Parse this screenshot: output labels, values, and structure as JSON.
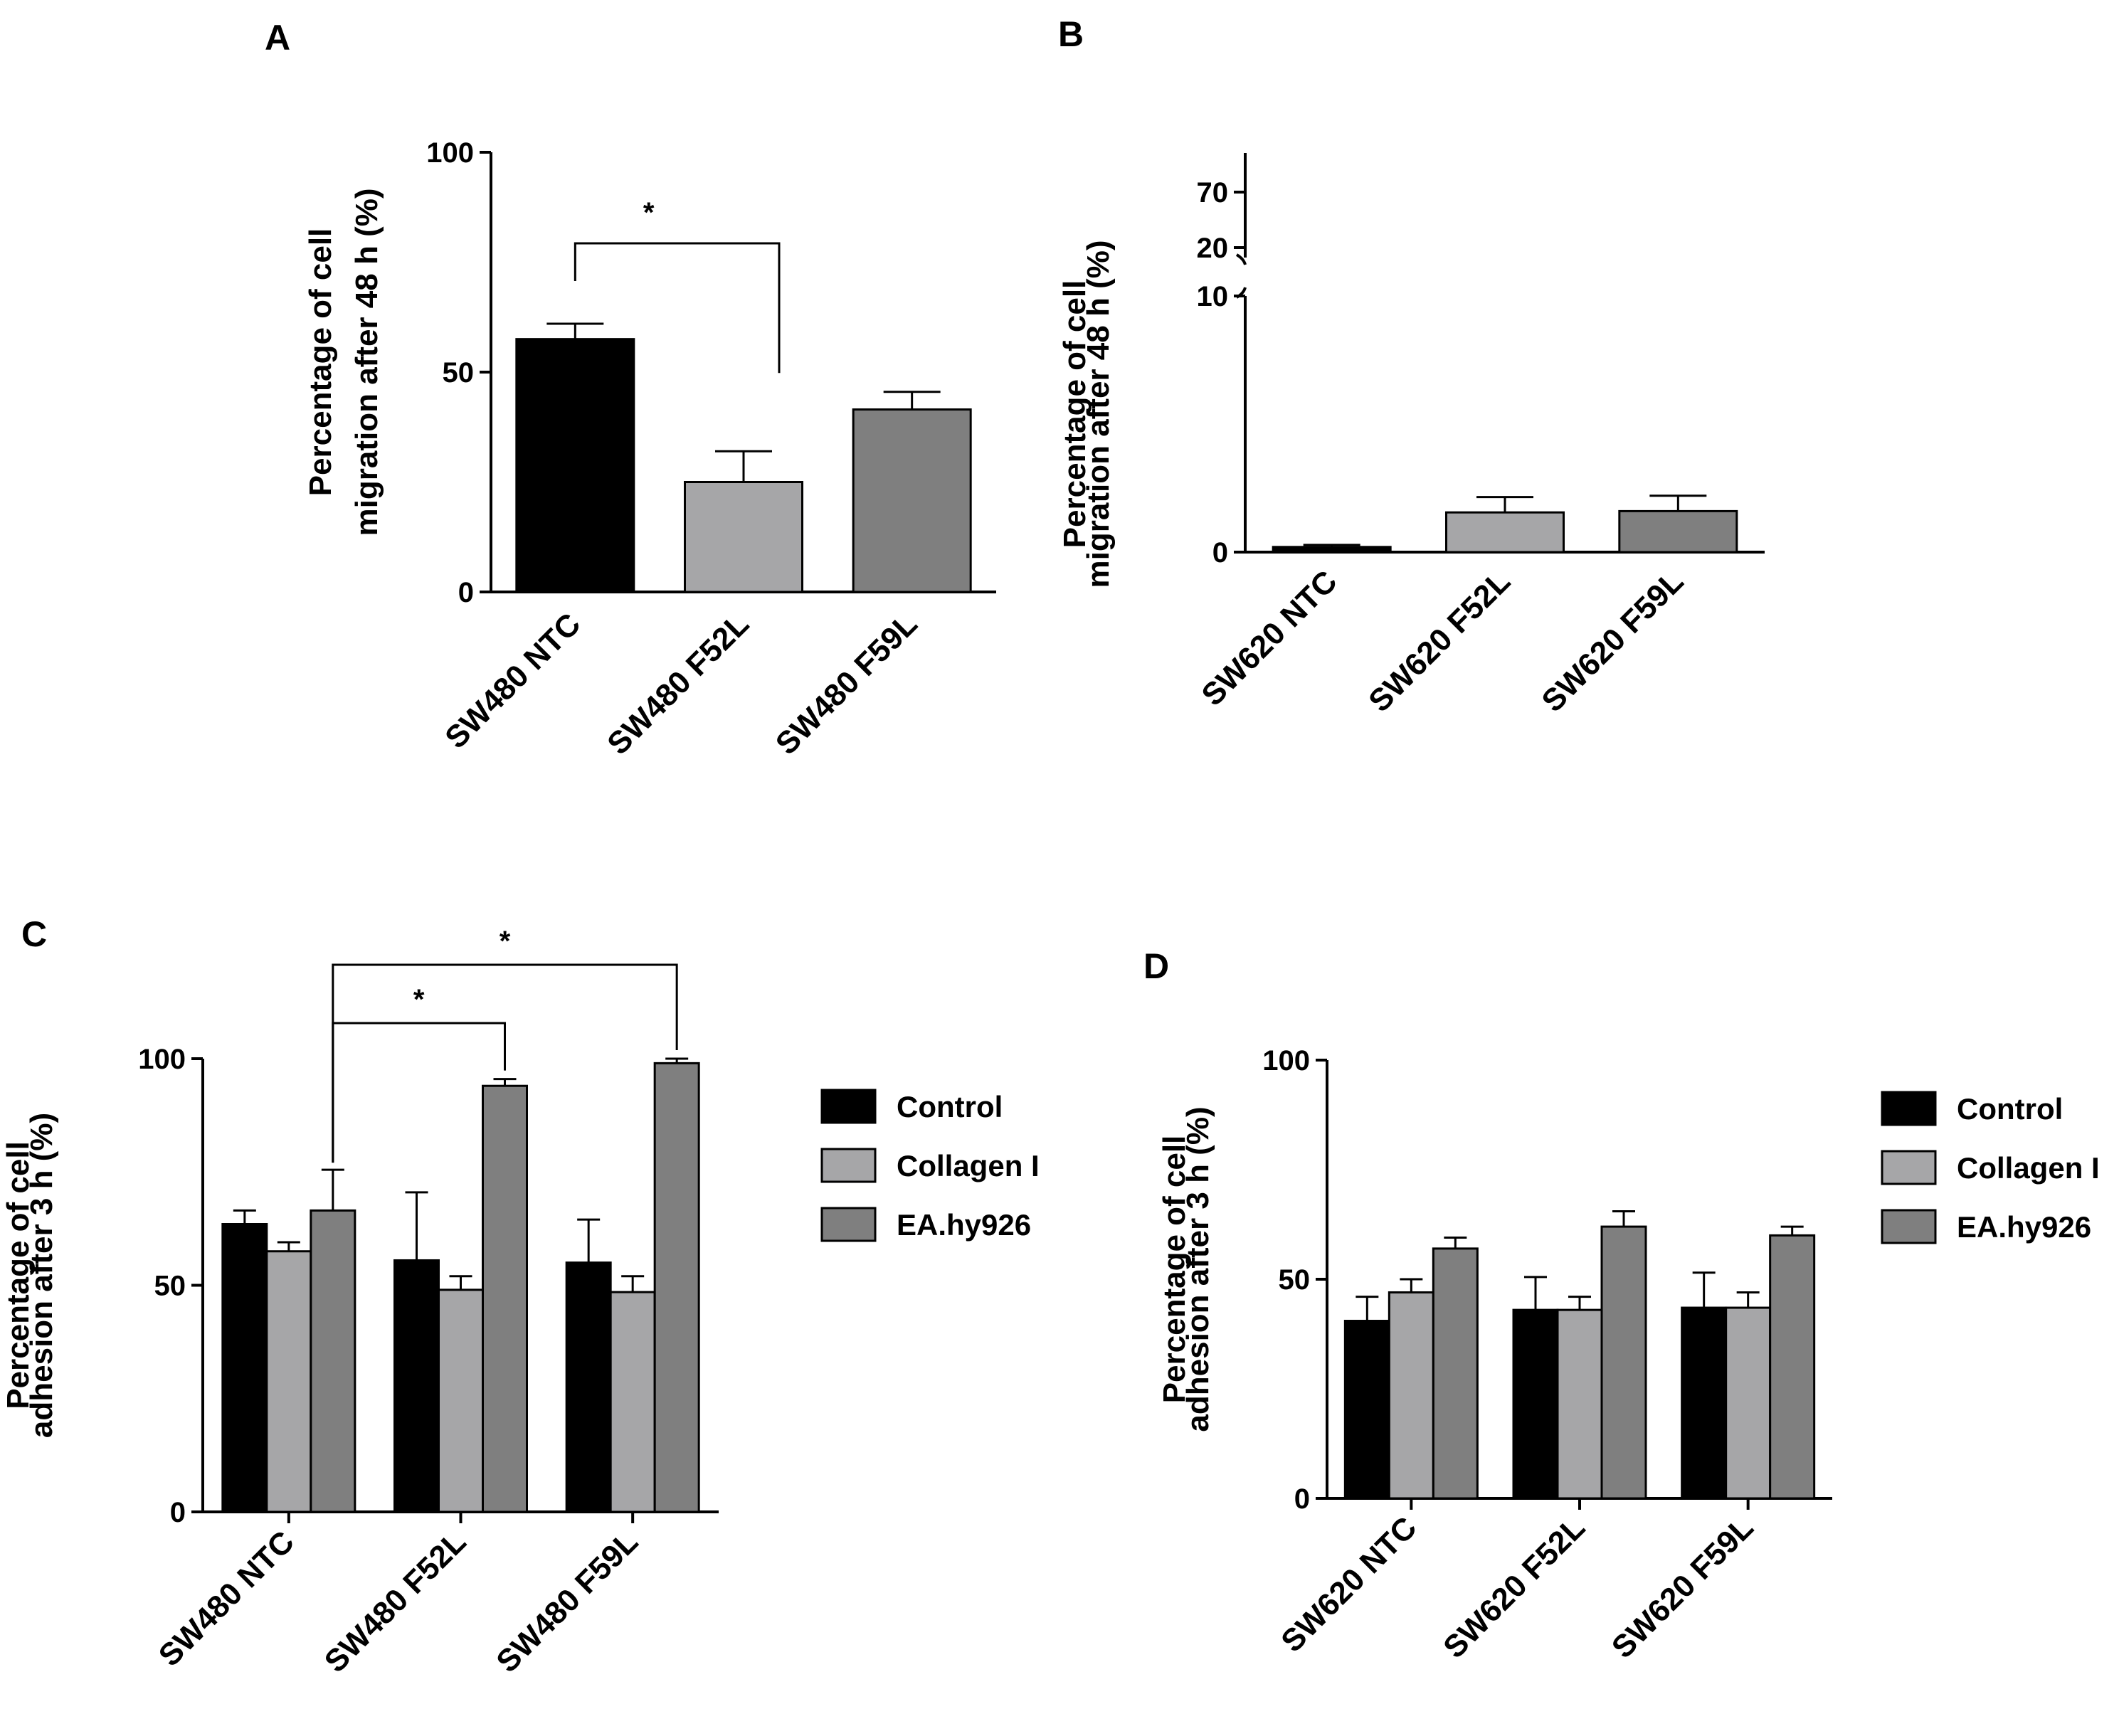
{
  "chart_data": [
    {
      "panel": "A",
      "type": "bar",
      "ylabel": "Percentage of cell migration after 48 h (%)",
      "ylabel_lines": [
        "Percentage of cell",
        "migration after 48 h (%)"
      ],
      "ylim": [
        0,
        100
      ],
      "yticks": [
        "0",
        "50",
        "100"
      ],
      "categories": [
        "SW480 NTC",
        "SW480 F52L",
        "SW480 F59L"
      ],
      "values": [
        57.5,
        25,
        41.5
      ],
      "errors": [
        3.5,
        7,
        4
      ],
      "colors": [
        "#000000",
        "#a6a6a8",
        "#7f7f7f"
      ],
      "significance": [
        {
          "from": 0,
          "to": 1,
          "label": "*"
        }
      ]
    },
    {
      "panel": "B",
      "type": "bar",
      "ylabel": "Percentage of cell migration after 48 h (%)",
      "ylabel_lines": [
        "Percentage of cell",
        "migration after 48 h (%)"
      ],
      "ylim": [
        0,
        10
      ],
      "yticks": [
        "0",
        "10"
      ],
      "broken_axis_ticks": [
        "20",
        "70"
      ],
      "categories": [
        "SW620 NTC",
        "SW620 F52L",
        "SW620 F59L"
      ],
      "values": [
        0.2,
        1.55,
        1.6
      ],
      "errors": [
        0.08,
        0.6,
        0.6
      ],
      "colors": [
        "#000000",
        "#a6a6a8",
        "#7f7f7f"
      ]
    },
    {
      "panel": "C",
      "type": "bar",
      "ylabel": "Percentage of cell adhesion after 3 h (%)",
      "ylabel_lines": [
        "Percentage of cell",
        "adhesion after 3 h (%)"
      ],
      "ylim": [
        0,
        100
      ],
      "yticks": [
        "0",
        "50",
        "100"
      ],
      "categories": [
        "SW480 NTC",
        "SW480 F52L",
        "SW480 F59L"
      ],
      "series": [
        {
          "name": "Control",
          "color": "#000000",
          "values": [
            63.5,
            55.5,
            55
          ],
          "errors": [
            3,
            15,
            9.5
          ]
        },
        {
          "name": "Collagen I",
          "color": "#a6a6a8",
          "values": [
            57.5,
            49,
            48.5
          ],
          "errors": [
            2,
            3,
            3.5
          ]
        },
        {
          "name": "EA.hy926",
          "color": "#7f7f7f",
          "values": [
            66.5,
            94,
            99
          ],
          "errors": [
            9,
            1.5,
            1
          ]
        }
      ],
      "legend": [
        "Control",
        "Collagen I",
        "EA.hy926"
      ],
      "significance": [
        {
          "from_group": 0,
          "to_group": 1,
          "series": 2,
          "label": "*"
        },
        {
          "from_group": 0,
          "to_group": 2,
          "series": 2,
          "label": "*"
        }
      ]
    },
    {
      "panel": "D",
      "type": "bar",
      "ylabel": "Percentage of cell adhesion after 3 h (%)",
      "ylabel_lines": [
        "Percentage of cell",
        "adhesion after 3 h (%)"
      ],
      "ylim": [
        0,
        100
      ],
      "yticks": [
        "0",
        "50",
        "100"
      ],
      "categories": [
        "SW620 NTC",
        "SW620 F52L",
        "SW620 F59L"
      ],
      "series": [
        {
          "name": "Control",
          "color": "#000000",
          "values": [
            40.5,
            43,
            43.5
          ],
          "errors": [
            5.5,
            7.5,
            8
          ]
        },
        {
          "name": "Collagen I",
          "color": "#a6a6a8",
          "values": [
            47,
            43,
            43.5
          ],
          "errors": [
            3,
            3,
            3.5
          ]
        },
        {
          "name": "EA.hy926",
          "color": "#7f7f7f",
          "values": [
            57,
            62,
            60
          ],
          "errors": [
            2.5,
            3.5,
            2
          ]
        }
      ],
      "legend": [
        "Control",
        "Collagen I",
        "EA.hy926"
      ]
    }
  ]
}
